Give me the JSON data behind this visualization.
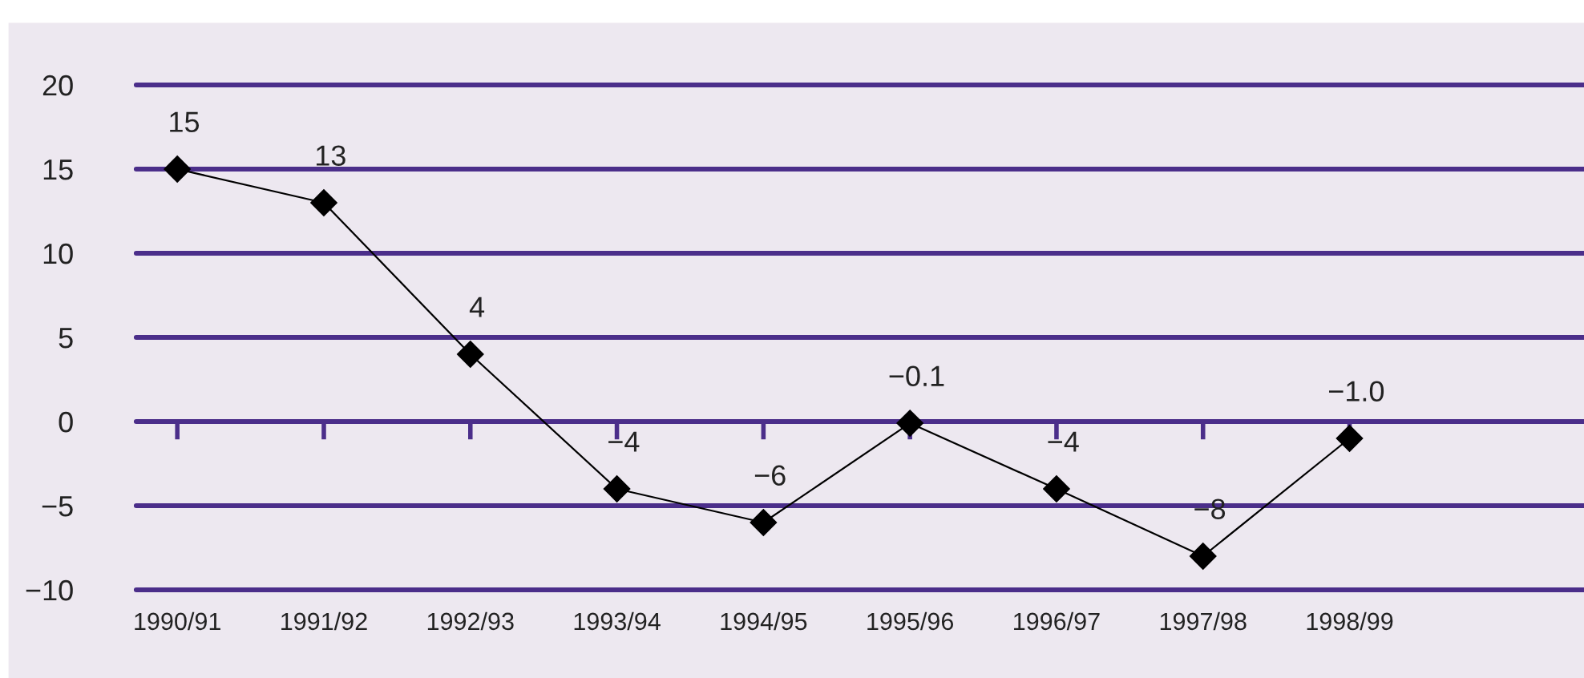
{
  "chart_data": {
    "type": "line",
    "categories": [
      "1990/91",
      "1991/92",
      "1992/93",
      "1993/94",
      "1994/95",
      "1995/96",
      "1996/97",
      "1997/98",
      "1998/99"
    ],
    "series": [
      {
        "color": "#000000",
        "values": [
          15,
          13,
          4,
          -4,
          -6,
          -0.1,
          -4,
          -8,
          -1.0
        ],
        "value_labels": [
          "15",
          "13",
          "4",
          "−4",
          "−6",
          "−0.1",
          "−4",
          "−8",
          "−1.0"
        ]
      }
    ],
    "ylim": [
      -10,
      20
    ],
    "yticks": [
      {
        "value": -10,
        "label": "−10"
      },
      {
        "value": -5,
        "label": "−5"
      },
      0,
      5,
      10,
      15,
      20
    ],
    "grid": "y",
    "marker": "diamond",
    "line_style": "solid"
  }
}
